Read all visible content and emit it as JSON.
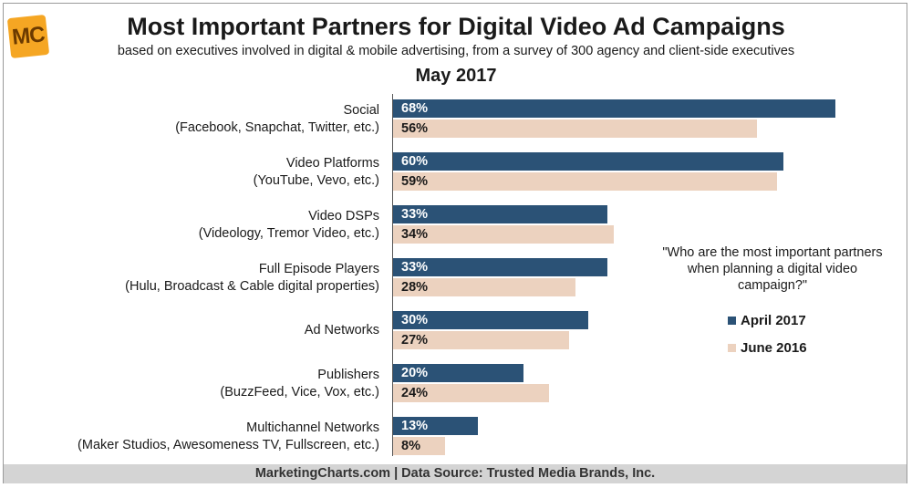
{
  "header": {
    "logo_text": "MC",
    "title": "Most Important Partners for Digital Video Ad Campaigns",
    "subtitle": "based on executives involved in digital & mobile advertising, from a survey of 300 agency and client-side executives",
    "date": "May 2017"
  },
  "note": "\"Who are the most important partners when planning a digital video campaign?\"",
  "footer": "MarketingCharts.com | Data Source: Trusted Media Brands, Inc.",
  "colors": {
    "april_2017": "#2b5276",
    "june_2016": "#ecd2bf"
  },
  "chart_data": {
    "type": "bar",
    "orientation": "horizontal",
    "title": "Most Important Partners for Digital Video Ad Campaigns",
    "categories": [
      {
        "line1": "Social",
        "line2": "(Facebook, Snapchat, Twitter, etc.)"
      },
      {
        "line1": "Video Platforms",
        "line2": "(YouTube, Vevo, etc.)"
      },
      {
        "line1": "Video DSPs",
        "line2": "(Videology, Tremor Video, etc.)"
      },
      {
        "line1": "Full Episode Players",
        "line2": "(Hulu, Broadcast & Cable digital properties)"
      },
      {
        "line1": "Ad Networks",
        "line2": ""
      },
      {
        "line1": "Publishers",
        "line2": "(BuzzFeed, Vice, Vox, etc.)"
      },
      {
        "line1": "Multichannel Networks",
        "line2": "(Maker Studios, Awesomeness TV, Fullscreen, etc.)"
      }
    ],
    "series": [
      {
        "name": "April 2017",
        "values": [
          68,
          60,
          33,
          33,
          30,
          20,
          13
        ]
      },
      {
        "name": "June 2016",
        "values": [
          56,
          59,
          34,
          28,
          27,
          24,
          8
        ]
      }
    ],
    "unit": "%",
    "xlim": [
      0,
      70
    ],
    "grid": false,
    "legend_position": "right"
  }
}
